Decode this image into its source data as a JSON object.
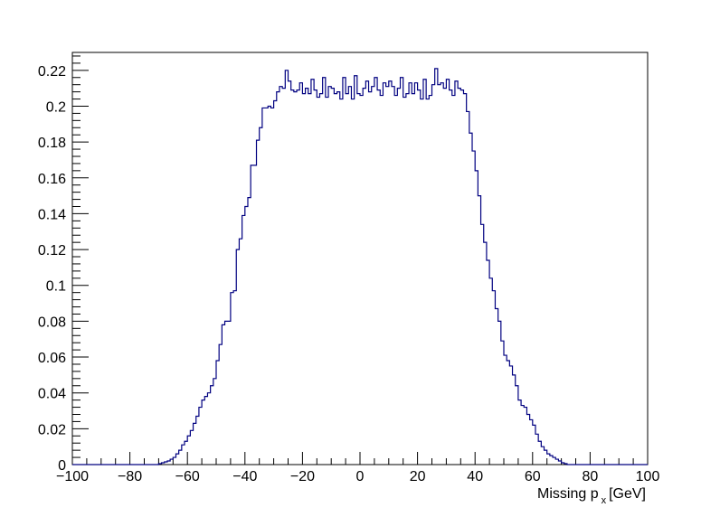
{
  "chart_data": {
    "type": "bar",
    "title": "",
    "xlabel": "Missing p",
    "xlabel_subscript": "x",
    "xlabel_unit": "[GeV]",
    "ylabel": "",
    "xlim": [
      -100,
      100
    ],
    "ylim": [
      0,
      0.23
    ],
    "grid": false,
    "legend": "none",
    "line_color": "#000080",
    "x_ticks": [
      -100,
      -80,
      -60,
      -40,
      -20,
      0,
      20,
      40,
      60,
      80,
      100
    ],
    "x_tick_labels": [
      "−100",
      "−80",
      "−60",
      "−40",
      "−20",
      "0",
      "20",
      "40",
      "60",
      "80",
      "100"
    ],
    "y_ticks": [
      0,
      0.02,
      0.04,
      0.06,
      0.08,
      0.1,
      0.12,
      0.14,
      0.16,
      0.18,
      0.2,
      0.22
    ],
    "y_tick_labels": [
      "0",
      "0.02",
      "0.04",
      "0.06",
      "0.08",
      "0.1",
      "0.12",
      "0.14",
      "0.16",
      "0.18",
      "0.2",
      "0.22"
    ],
    "bins": {
      "x_start": -100,
      "bin_width": 1,
      "values": [
        0,
        0,
        0,
        0,
        0,
        0,
        0,
        0,
        0,
        0,
        0,
        0,
        0,
        0,
        0,
        0,
        0,
        0,
        0,
        0,
        0,
        0,
        0,
        0,
        0,
        0,
        0,
        0,
        0,
        0,
        0.0005,
        0.001,
        0.0015,
        0.002,
        0.003,
        0.004,
        0.006,
        0.008,
        0.011,
        0.013,
        0.016,
        0.019,
        0.023,
        0.027,
        0.032,
        0.036,
        0.038,
        0.04,
        0.044,
        0.048,
        0.058,
        0.067,
        0.078,
        0.08,
        0.08,
        0.096,
        0.097,
        0.12,
        0.126,
        0.139,
        0.144,
        0.149,
        0.167,
        0.167,
        0.181,
        0.188,
        0.199,
        0.199,
        0.2,
        0.199,
        0.203,
        0.208,
        0.211,
        0.21,
        0.22,
        0.214,
        0.209,
        0.208,
        0.209,
        0.213,
        0.207,
        0.21,
        0.207,
        0.215,
        0.209,
        0.205,
        0.207,
        0.216,
        0.205,
        0.211,
        0.21,
        0.207,
        0.208,
        0.204,
        0.216,
        0.207,
        0.211,
        0.204,
        0.217,
        0.207,
        0.206,
        0.21,
        0.214,
        0.208,
        0.211,
        0.216,
        0.209,
        0.206,
        0.213,
        0.211,
        0.214,
        0.211,
        0.206,
        0.21,
        0.216,
        0.205,
        0.207,
        0.213,
        0.207,
        0.213,
        0.209,
        0.204,
        0.215,
        0.204,
        0.206,
        0.212,
        0.221,
        0.212,
        0.213,
        0.21,
        0.215,
        0.209,
        0.206,
        0.214,
        0.21,
        0.209,
        0.207,
        0.197,
        0.185,
        0.175,
        0.164,
        0.15,
        0.134,
        0.124,
        0.114,
        0.104,
        0.097,
        0.087,
        0.08,
        0.069,
        0.061,
        0.058,
        0.055,
        0.05,
        0.044,
        0.036,
        0.033,
        0.032,
        0.028,
        0.025,
        0.022,
        0.017,
        0.013,
        0.01,
        0.008,
        0.006,
        0.005,
        0.004,
        0.003,
        0.002,
        0.001,
        0.0005,
        0,
        0,
        0,
        0,
        0,
        0,
        0,
        0,
        0,
        0,
        0,
        0,
        0,
        0,
        0,
        0,
        0,
        0,
        0,
        0,
        0,
        0,
        0,
        0,
        0,
        0,
        0,
        0
      ]
    }
  }
}
